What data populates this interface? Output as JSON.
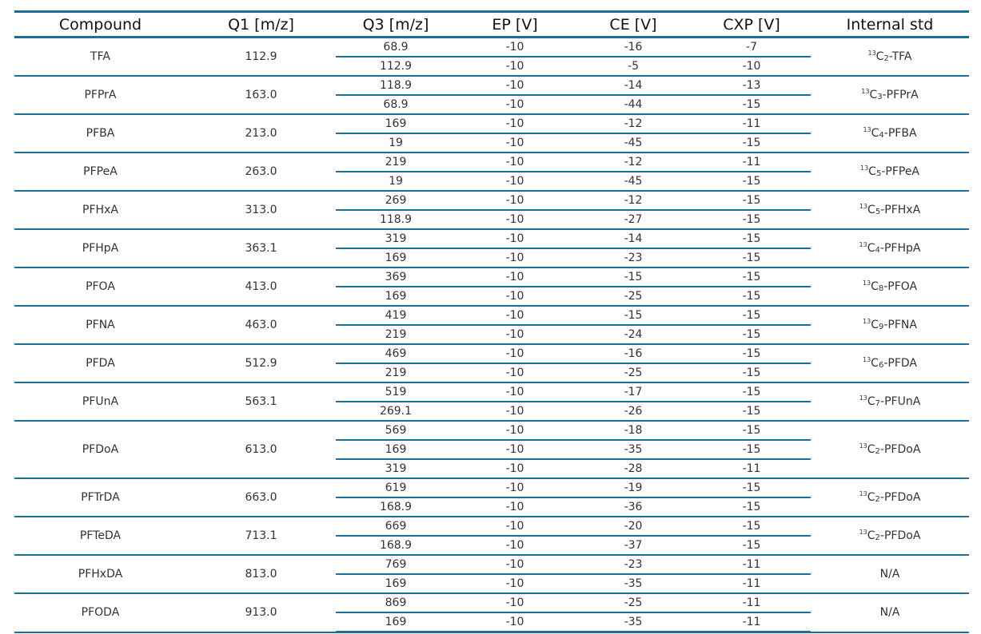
{
  "table": {
    "headers": [
      "Compound",
      "Q1 [m/z]",
      "Q3 [m/z]",
      "EP [V]",
      "CE [V]",
      "CXP [V]",
      "Internal std"
    ],
    "rows": [
      {
        "compound": "TFA",
        "q1": "112.9",
        "std": {
          "sup": "13",
          "c": "C",
          "sub": "2",
          "name": "-TFA"
        },
        "transitions": [
          {
            "q3": "68.9",
            "ep": "-10",
            "ce": "-16",
            "cxp": "-7"
          },
          {
            "q3": "112.9",
            "ep": "-10",
            "ce": "-5",
            "cxp": "-10"
          }
        ]
      },
      {
        "compound": "PFPrA",
        "q1": "163.0",
        "std": {
          "sup": "13",
          "c": "C",
          "sub": "3",
          "name": "-PFPrA"
        },
        "transitions": [
          {
            "q3": "118.9",
            "ep": "-10",
            "ce": "-14",
            "cxp": "-13"
          },
          {
            "q3": "68.9",
            "ep": "-10",
            "ce": "-44",
            "cxp": "-15"
          }
        ]
      },
      {
        "compound": "PFBA",
        "q1": "213.0",
        "std": {
          "sup": "13",
          "c": "C",
          "sub": "4",
          "name": "-PFBA"
        },
        "transitions": [
          {
            "q3": "169",
            "ep": "-10",
            "ce": "-12",
            "cxp": "-11"
          },
          {
            "q3": "19",
            "ep": "-10",
            "ce": "-45",
            "cxp": "-15"
          }
        ]
      },
      {
        "compound": "PFPeA",
        "q1": "263.0",
        "std": {
          "sup": "13",
          "c": "C",
          "sub": "5",
          "name": "-PFPeA"
        },
        "transitions": [
          {
            "q3": "219",
            "ep": "-10",
            "ce": "-12",
            "cxp": "-11"
          },
          {
            "q3": "19",
            "ep": "-10",
            "ce": "-45",
            "cxp": "-15"
          }
        ]
      },
      {
        "compound": "PFHxA",
        "q1": "313.0",
        "std": {
          "sup": "13",
          "c": "C",
          "sub": "5",
          "name": "-PFHxA"
        },
        "transitions": [
          {
            "q3": "269",
            "ep": "-10",
            "ce": "-12",
            "cxp": "-15"
          },
          {
            "q3": "118.9",
            "ep": "-10",
            "ce": "-27",
            "cxp": "-15"
          }
        ]
      },
      {
        "compound": "PFHpA",
        "q1": "363.1",
        "std": {
          "sup": "13",
          "c": "C",
          "sub": "4",
          "name": "-PFHpA"
        },
        "transitions": [
          {
            "q3": "319",
            "ep": "-10",
            "ce": "-14",
            "cxp": "-15"
          },
          {
            "q3": "169",
            "ep": "-10",
            "ce": "-23",
            "cxp": "-15"
          }
        ]
      },
      {
        "compound": "PFOA",
        "q1": "413.0",
        "std": {
          "sup": "13",
          "c": "C",
          "sub": "8",
          "name": "-PFOA"
        },
        "transitions": [
          {
            "q3": "369",
            "ep": "-10",
            "ce": "-15",
            "cxp": "-15"
          },
          {
            "q3": "169",
            "ep": "-10",
            "ce": "-25",
            "cxp": "-15"
          }
        ]
      },
      {
        "compound": "PFNA",
        "q1": "463.0",
        "std": {
          "sup": "13",
          "c": "C",
          "sub": "9",
          "name": "-PFNA"
        },
        "transitions": [
          {
            "q3": "419",
            "ep": "-10",
            "ce": "-15",
            "cxp": "-15"
          },
          {
            "q3": "219",
            "ep": "-10",
            "ce": "-24",
            "cxp": "-15"
          }
        ]
      },
      {
        "compound": "PFDA",
        "q1": "512.9",
        "std": {
          "sup": "13",
          "c": "C",
          "sub": "6",
          "name": "-PFDA"
        },
        "transitions": [
          {
            "q3": "469",
            "ep": "-10",
            "ce": "-16",
            "cxp": "-15"
          },
          {
            "q3": "219",
            "ep": "-10",
            "ce": "-25",
            "cxp": "-15"
          }
        ]
      },
      {
        "compound": "PFUnA",
        "q1": "563.1",
        "std": {
          "sup": "13",
          "c": "C",
          "sub": "7",
          "name": "-PFUnA"
        },
        "transitions": [
          {
            "q3": "519",
            "ep": "-10",
            "ce": "-17",
            "cxp": "-15"
          },
          {
            "q3": "269.1",
            "ep": "-10",
            "ce": "-26",
            "cxp": "-15"
          }
        ]
      },
      {
        "compound": "PFDoA",
        "q1": "613.0",
        "std": {
          "sup": "13",
          "c": "C",
          "sub": "2",
          "name": "-PFDoA"
        },
        "transitions": [
          {
            "q3": "569",
            "ep": "-10",
            "ce": "-18",
            "cxp": "-15"
          },
          {
            "q3": "169",
            "ep": "-10",
            "ce": "-35",
            "cxp": "-15"
          },
          {
            "q3": "319",
            "ep": "-10",
            "ce": "-28",
            "cxp": "-11"
          }
        ]
      },
      {
        "compound": "PFTrDA",
        "q1": "663.0",
        "std": {
          "sup": "13",
          "c": "C",
          "sub": "2",
          "name": "-PFDoA"
        },
        "transitions": [
          {
            "q3": "619",
            "ep": "-10",
            "ce": "-19",
            "cxp": "-15"
          },
          {
            "q3": "168.9",
            "ep": "-10",
            "ce": "-36",
            "cxp": "-15"
          }
        ]
      },
      {
        "compound": "PFTeDA",
        "q1": "713.1",
        "std": {
          "sup": "13",
          "c": "C",
          "sub": "2",
          "name": "-PFDoA"
        },
        "transitions": [
          {
            "q3": "669",
            "ep": "-10",
            "ce": "-20",
            "cxp": "-15"
          },
          {
            "q3": "168.9",
            "ep": "-10",
            "ce": "-37",
            "cxp": "-15"
          }
        ]
      },
      {
        "compound": "PFHxDA",
        "q1": "813.0",
        "std": {
          "plain": "N/A"
        },
        "transitions": [
          {
            "q3": "769",
            "ep": "-10",
            "ce": "-23",
            "cxp": "-11"
          },
          {
            "q3": "169",
            "ep": "-10",
            "ce": "-35",
            "cxp": "-11"
          }
        ]
      },
      {
        "compound": "PFODA",
        "q1": "913.0",
        "std": {
          "plain": "N/A"
        },
        "transitions": [
          {
            "q3": "869",
            "ep": "-10",
            "ce": "-25",
            "cxp": "-11"
          },
          {
            "q3": "169",
            "ep": "-10",
            "ce": "-35",
            "cxp": "-11"
          }
        ]
      }
    ]
  },
  "colors": {
    "rule": "#1f6e98",
    "text": "#333333",
    "header_text": "#111111"
  }
}
